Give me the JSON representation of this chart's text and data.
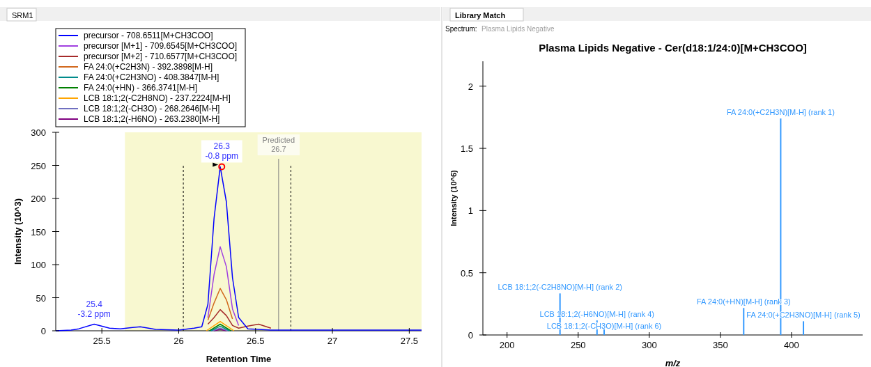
{
  "chart_data": [
    {
      "type": "line",
      "annotations": [
        "SRM1",
        {
          "text": "26.3\n-0.8 ppm",
          "x": 26.28,
          "y": 248
        },
        {
          "text": "25.4\n-3.2 ppm",
          "x": 25.45,
          "y": 10
        }
      ],
      "xlabel": "Retention Time",
      "ylabel": "Intensity (10^3)",
      "xlim": [
        25.2,
        27.58
      ],
      "xticks": [
        25.5,
        26.0,
        26.5,
        27.0,
        27.5
      ],
      "ylim": [
        0,
        300
      ],
      "yticks": [
        0,
        50,
        100,
        150,
        200,
        250,
        300
      ],
      "x": [
        25.2,
        25.3,
        25.35,
        25.45,
        25.55,
        25.62,
        25.7,
        25.75,
        25.85,
        26.0,
        26.1,
        26.15,
        26.19,
        26.23,
        26.27,
        26.31,
        26.35,
        26.39,
        26.45,
        26.52,
        26.6,
        26.7,
        27.0,
        27.3,
        27.58
      ],
      "series": [
        {
          "name": "precursor - 708.6511[M+CH3COO]",
          "color": "#0000ff",
          "values": [
            0,
            1,
            3,
            10,
            4,
            3,
            5,
            6,
            2,
            1,
            4,
            6,
            40,
            170,
            248,
            195,
            80,
            20,
            3,
            2,
            1,
            1,
            1,
            1,
            1
          ]
        },
        {
          "name": "precursor [M+1] - 709.6545[M+CH3COO]",
          "color": "#a040e0",
          "values": [
            null,
            null,
            null,
            null,
            null,
            null,
            null,
            null,
            null,
            null,
            null,
            null,
            20,
            85,
            127,
            97,
            33,
            8,
            null,
            null,
            null,
            null,
            null,
            null,
            null
          ]
        },
        {
          "name": "precursor [M+2] - 710.6577[M+CH3COO]",
          "color": "#a52a2a",
          "values": [
            null,
            null,
            null,
            null,
            null,
            null,
            null,
            null,
            null,
            null,
            null,
            null,
            10,
            20,
            32,
            23,
            8,
            4,
            7,
            10,
            4,
            null,
            null,
            null,
            null
          ]
        },
        {
          "name": "FA 24:0(+C2H3N) - 392.3898[M-H]",
          "color": "#d2691e",
          "values": [
            null,
            null,
            null,
            null,
            null,
            null,
            null,
            null,
            null,
            null,
            null,
            null,
            16,
            42,
            64,
            47,
            18,
            null,
            null,
            null,
            null,
            null,
            null,
            null,
            null
          ]
        },
        {
          "name": "FA 24:0(+C2H3NO) - 408.3847[M-H]",
          "color": "#008b8b",
          "x": [
            26.21,
            26.27,
            26.33
          ],
          "values": [
            0,
            7,
            0
          ]
        },
        {
          "name": "FA 24:0(+HN) - 366.3741[M-H]",
          "color": "#008000",
          "x": [
            26.2,
            26.27,
            26.34
          ],
          "values": [
            0,
            10,
            0
          ]
        },
        {
          "name": "LCB 18:1;2(-C2H8NO) - 237.2224[M-H]",
          "color": "#ffa500",
          "x": [
            26.18,
            26.27,
            26.36
          ],
          "values": [
            0,
            14,
            0
          ]
        },
        {
          "name": "LCB 18:1;2(-CH3O) - 268.2646[M-H]",
          "color": "#7070c0",
          "x": [
            26.22,
            26.27,
            26.32
          ],
          "values": [
            0,
            4,
            0
          ]
        },
        {
          "name": "LCB 18:1;2(-H6NO) - 263.2380[M-H]",
          "color": "#800080",
          "x": [
            26.23,
            26.27,
            26.31
          ],
          "values": [
            0,
            2,
            0
          ]
        }
      ],
      "bands": [
        {
          "axis": "x",
          "from": 25.65,
          "to": 27.58,
          "color": "#f8f8d0"
        }
      ],
      "ref_lines": [
        {
          "axis": "x",
          "value": 26.03,
          "line_style": "dashed",
          "color": "#000000"
        },
        {
          "axis": "x",
          "value": 26.73,
          "line_style": "dashed",
          "color": "#000000"
        },
        {
          "axis": "x",
          "value": 26.65,
          "label": "Predicted\n26.7",
          "color": "#808080"
        }
      ],
      "legend": "top left",
      "marker": "none",
      "line_style": "solid"
    },
    {
      "type": "bar",
      "title": "Plasma Lipids Negative - Cer(d18:1/24:0)[M+CH3COO]",
      "annotations": [
        "Library Match",
        "Spectrum:",
        "Plasma Lipids Negative"
      ],
      "xlabel": "m/z",
      "ylabel": "Intensity (10^6)",
      "xlim": [
        183,
        450
      ],
      "xticks": [
        200,
        250,
        300,
        350,
        400
      ],
      "ylim": [
        0,
        2.2
      ],
      "yticks": [
        0,
        0.5,
        1,
        1.5,
        2
      ],
      "x": [
        237.22,
        263.24,
        268.26,
        366.37,
        392.39,
        408.38
      ],
      "values": [
        0.334,
        0.117,
        0.045,
        0.217,
        1.74,
        0.11
      ],
      "value_labels": [
        "LCB 18:1;2(-C2H8NO)[M-H] (rank 2)",
        "LCB 18:1;2(-H6NO)[M-H] (rank 4)",
        "LCB 18:1;2(-CH3O)[M-H] (rank 6)",
        "FA 24:0(+HN)[M-H] (rank 3)",
        "FA 24:0(+C2H3N)[M-H] (rank 1)",
        "FA 24:0(+C2H3NO)[M-H] (rank 5)"
      ],
      "color": "#3399ff",
      "legend": false
    }
  ]
}
